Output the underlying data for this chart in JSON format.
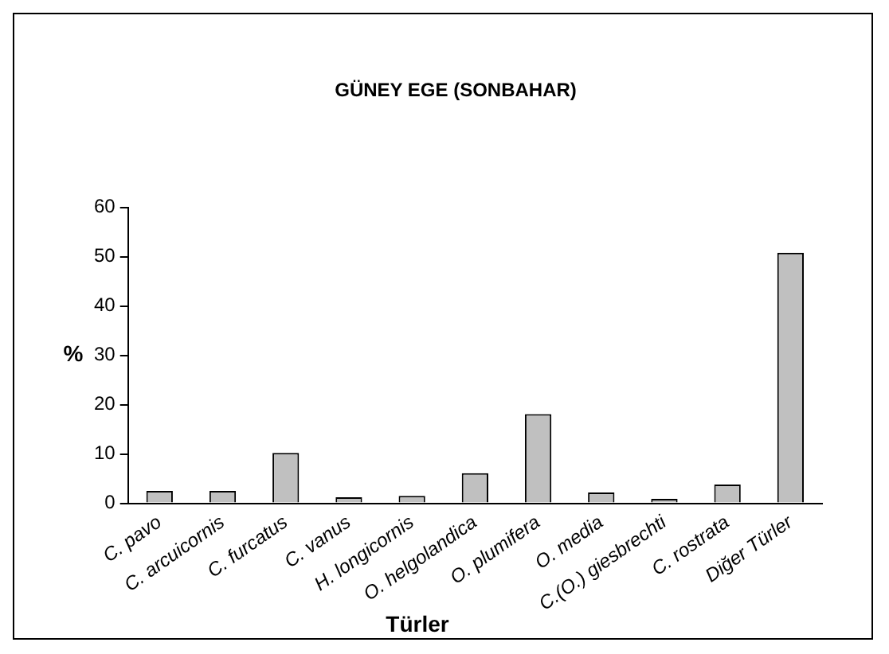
{
  "chart_data": {
    "type": "bar",
    "title": "GÜNEY EGE (SONBAHAR)",
    "xlabel": "Türler",
    "ylabel": "%",
    "categories": [
      "C. pavo",
      "C. arcuicornis",
      "C. furcatus",
      "C. vanus",
      "H. longicornis",
      "O. helgolandica",
      "O. plumifera",
      "O. media",
      "C.(O.) giesbrechti",
      "C. rostrata",
      "Diğer Türler"
    ],
    "values": [
      2.5,
      2.5,
      10.2,
      1.2,
      1.5,
      6.1,
      18.1,
      2.2,
      0.9,
      3.8,
      50.8
    ],
    "color": "#c0c0c0",
    "ylim": [
      0,
      60
    ],
    "yticks": [
      0,
      10,
      20,
      30,
      40,
      50,
      60
    ],
    "grid": false,
    "legend": false
  }
}
